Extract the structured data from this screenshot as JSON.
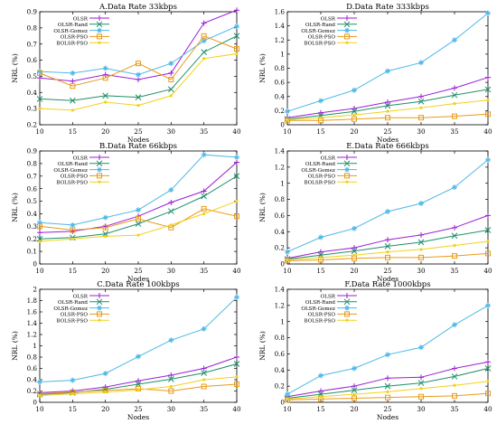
{
  "colors": {
    "OLSR": "#9b1fd6",
    "OLSR-Rand": "#1f8f6a",
    "OLSR-Gomez": "#4db8e8",
    "OLSR-PSO": "#e89a1a",
    "BOLSR-PSO": "#f2d11a"
  },
  "chart_data": [
    {
      "type": "line",
      "title": "A.Data Rate 33kbps",
      "xlabel": "Nodes",
      "ylabel": "NRL (%)",
      "x": [
        10,
        15,
        20,
        25,
        30,
        35,
        40
      ],
      "xlim": [
        10,
        40
      ],
      "ylim": [
        0.2,
        0.9
      ],
      "yticks": [
        "0.2",
        "0.3",
        "0.4",
        "0.5",
        "0.6",
        "0.7",
        "0.8",
        "0.9"
      ],
      "xticks": [
        "10",
        "15",
        "20",
        "25",
        "30",
        "35",
        "40"
      ],
      "legend": "top-left",
      "series": [
        {
          "name": "OLSR",
          "values": [
            0.49,
            0.47,
            0.51,
            0.48,
            0.52,
            0.83,
            0.91
          ]
        },
        {
          "name": "OLSR-Rand",
          "values": [
            0.36,
            0.35,
            0.38,
            0.37,
            0.42,
            0.65,
            0.75
          ]
        },
        {
          "name": "OLSR-Gomez",
          "values": [
            0.53,
            0.52,
            0.55,
            0.51,
            0.58,
            0.72,
            0.81
          ]
        },
        {
          "name": "OLSR-PSO",
          "values": [
            0.52,
            0.44,
            0.49,
            0.58,
            0.48,
            0.75,
            0.67
          ]
        },
        {
          "name": "BOLSR-PSO",
          "values": [
            0.3,
            0.29,
            0.34,
            0.32,
            0.38,
            0.61,
            0.64
          ]
        }
      ]
    },
    {
      "type": "line",
      "title": "D.Data Rate 333kbps",
      "xlabel": "Nodes",
      "ylabel": "NRL (%)",
      "x": [
        10,
        15,
        20,
        25,
        30,
        35,
        40
      ],
      "xlim": [
        10,
        40
      ],
      "ylim": [
        0,
        1.6
      ],
      "yticks": [
        "0",
        "0.2",
        "0.4",
        "0.6",
        "0.8",
        "1",
        "1.2",
        "1.4",
        "1.6"
      ],
      "xticks": [
        "10",
        "15",
        "20",
        "25",
        "30",
        "35",
        "40"
      ],
      "legend": "top-left",
      "series": [
        {
          "name": "OLSR",
          "values": [
            0.1,
            0.17,
            0.23,
            0.32,
            0.4,
            0.52,
            0.67
          ]
        },
        {
          "name": "OLSR-Rand",
          "values": [
            0.08,
            0.13,
            0.19,
            0.27,
            0.33,
            0.42,
            0.5
          ]
        },
        {
          "name": "OLSR-Gomez",
          "values": [
            0.19,
            0.34,
            0.49,
            0.76,
            0.88,
            1.2,
            1.58
          ]
        },
        {
          "name": "OLSR-PSO",
          "values": [
            0.06,
            0.06,
            0.08,
            0.1,
            0.1,
            0.12,
            0.15
          ]
        },
        {
          "name": "BOLSR-PSO",
          "values": [
            0.07,
            0.1,
            0.14,
            0.19,
            0.24,
            0.3,
            0.35
          ]
        }
      ]
    },
    {
      "type": "line",
      "title": "B.Data Rate 66kbps",
      "xlabel": "Nodes",
      "ylabel": "NRL (%)",
      "x": [
        10,
        15,
        20,
        25,
        30,
        35,
        40
      ],
      "xlim": [
        10,
        40
      ],
      "ylim": [
        0,
        0.9
      ],
      "yticks": [
        "0",
        "0.1",
        "0.2",
        "0.3",
        "0.4",
        "0.5",
        "0.6",
        "0.7",
        "0.8",
        "0.9"
      ],
      "xticks": [
        "10",
        "15",
        "20",
        "25",
        "30",
        "35",
        "40"
      ],
      "legend": "top-left",
      "series": [
        {
          "name": "OLSR",
          "values": [
            0.25,
            0.26,
            0.3,
            0.38,
            0.49,
            0.58,
            0.81
          ]
        },
        {
          "name": "OLSR-Rand",
          "values": [
            0.2,
            0.21,
            0.24,
            0.32,
            0.42,
            0.54,
            0.7
          ]
        },
        {
          "name": "OLSR-Gomez",
          "values": [
            0.33,
            0.31,
            0.37,
            0.43,
            0.59,
            0.87,
            0.85
          ]
        },
        {
          "name": "OLSR-PSO",
          "values": [
            0.3,
            0.27,
            0.29,
            0.36,
            0.29,
            0.44,
            0.38
          ]
        },
        {
          "name": "BOLSR-PSO",
          "values": [
            0.18,
            0.2,
            0.22,
            0.23,
            0.31,
            0.4,
            0.5
          ]
        }
      ]
    },
    {
      "type": "line",
      "title": "E.Data Rate 666kbps",
      "xlabel": "Nodes",
      "ylabel": "NRL (%)",
      "x": [
        10,
        15,
        20,
        25,
        30,
        35,
        40
      ],
      "xlim": [
        10,
        40
      ],
      "ylim": [
        0,
        1.4
      ],
      "yticks": [
        "0",
        "0.2",
        "0.4",
        "0.6",
        "0.8",
        "1",
        "1.2",
        "1.4"
      ],
      "xticks": [
        "10",
        "15",
        "20",
        "25",
        "30",
        "35",
        "40"
      ],
      "legend": "top-left",
      "series": [
        {
          "name": "OLSR",
          "values": [
            0.07,
            0.15,
            0.2,
            0.3,
            0.36,
            0.45,
            0.6
          ]
        },
        {
          "name": "OLSR-Rand",
          "values": [
            0.06,
            0.11,
            0.16,
            0.22,
            0.27,
            0.35,
            0.42
          ]
        },
        {
          "name": "OLSR-Gomez",
          "values": [
            0.15,
            0.33,
            0.44,
            0.65,
            0.75,
            0.95,
            1.29
          ]
        },
        {
          "name": "OLSR-PSO",
          "values": [
            0.04,
            0.05,
            0.07,
            0.08,
            0.08,
            0.1,
            0.13
          ]
        },
        {
          "name": "BOLSR-PSO",
          "values": [
            0.05,
            0.08,
            0.11,
            0.15,
            0.18,
            0.23,
            0.28
          ]
        }
      ]
    },
    {
      "type": "line",
      "title": "C.Data Rate 100kbps",
      "xlabel": "Nodes",
      "ylabel": "NRL (%)",
      "x": [
        10,
        15,
        20,
        25,
        30,
        35,
        40
      ],
      "xlim": [
        10,
        40
      ],
      "ylim": [
        0,
        2
      ],
      "yticks": [
        "0",
        "0.2",
        "0.4",
        "0.6",
        "0.8",
        "1",
        "1.2",
        "1.4",
        "1.6",
        "1.8",
        "2"
      ],
      "xticks": [
        "10",
        "15",
        "20",
        "25",
        "30",
        "35",
        "40"
      ],
      "legend": "top-left",
      "series": [
        {
          "name": "OLSR",
          "values": [
            0.17,
            0.2,
            0.27,
            0.38,
            0.48,
            0.6,
            0.8
          ]
        },
        {
          "name": "OLSR-Rand",
          "values": [
            0.14,
            0.17,
            0.23,
            0.32,
            0.41,
            0.52,
            0.68
          ]
        },
        {
          "name": "OLSR-Gomez",
          "values": [
            0.36,
            0.39,
            0.51,
            0.81,
            1.1,
            1.3,
            1.86
          ]
        },
        {
          "name": "OLSR-PSO",
          "values": [
            0.15,
            0.18,
            0.21,
            0.24,
            0.2,
            0.28,
            0.32
          ]
        },
        {
          "name": "BOLSR-PSO",
          "values": [
            0.12,
            0.15,
            0.18,
            0.22,
            0.28,
            0.4,
            0.45
          ]
        }
      ]
    },
    {
      "type": "line",
      "title": "F.Data Rate 1000kbps",
      "xlabel": "Nodes",
      "ylabel": "NRL (%)",
      "x": [
        10,
        15,
        20,
        25,
        30,
        35,
        40
      ],
      "xlim": [
        10,
        40
      ],
      "ylim": [
        0,
        1.4
      ],
      "yticks": [
        "0",
        "0.2",
        "0.4",
        "0.6",
        "0.8",
        "1",
        "1.2",
        "1.4"
      ],
      "xticks": [
        "10",
        "15",
        "20",
        "25",
        "30",
        "35",
        "40"
      ],
      "legend": "top-left",
      "series": [
        {
          "name": "OLSR",
          "values": [
            0.07,
            0.14,
            0.2,
            0.3,
            0.31,
            0.42,
            0.5
          ]
        },
        {
          "name": "OLSR-Rand",
          "values": [
            0.05,
            0.1,
            0.15,
            0.2,
            0.24,
            0.32,
            0.42
          ]
        },
        {
          "name": "OLSR-Gomez",
          "values": [
            0.1,
            0.33,
            0.42,
            0.59,
            0.68,
            0.96,
            1.2
          ]
        },
        {
          "name": "OLSR-PSO",
          "values": [
            0.03,
            0.04,
            0.05,
            0.06,
            0.07,
            0.08,
            0.11
          ]
        },
        {
          "name": "BOLSR-PSO",
          "values": [
            0.04,
            0.07,
            0.1,
            0.13,
            0.17,
            0.21,
            0.26
          ]
        }
      ]
    }
  ]
}
